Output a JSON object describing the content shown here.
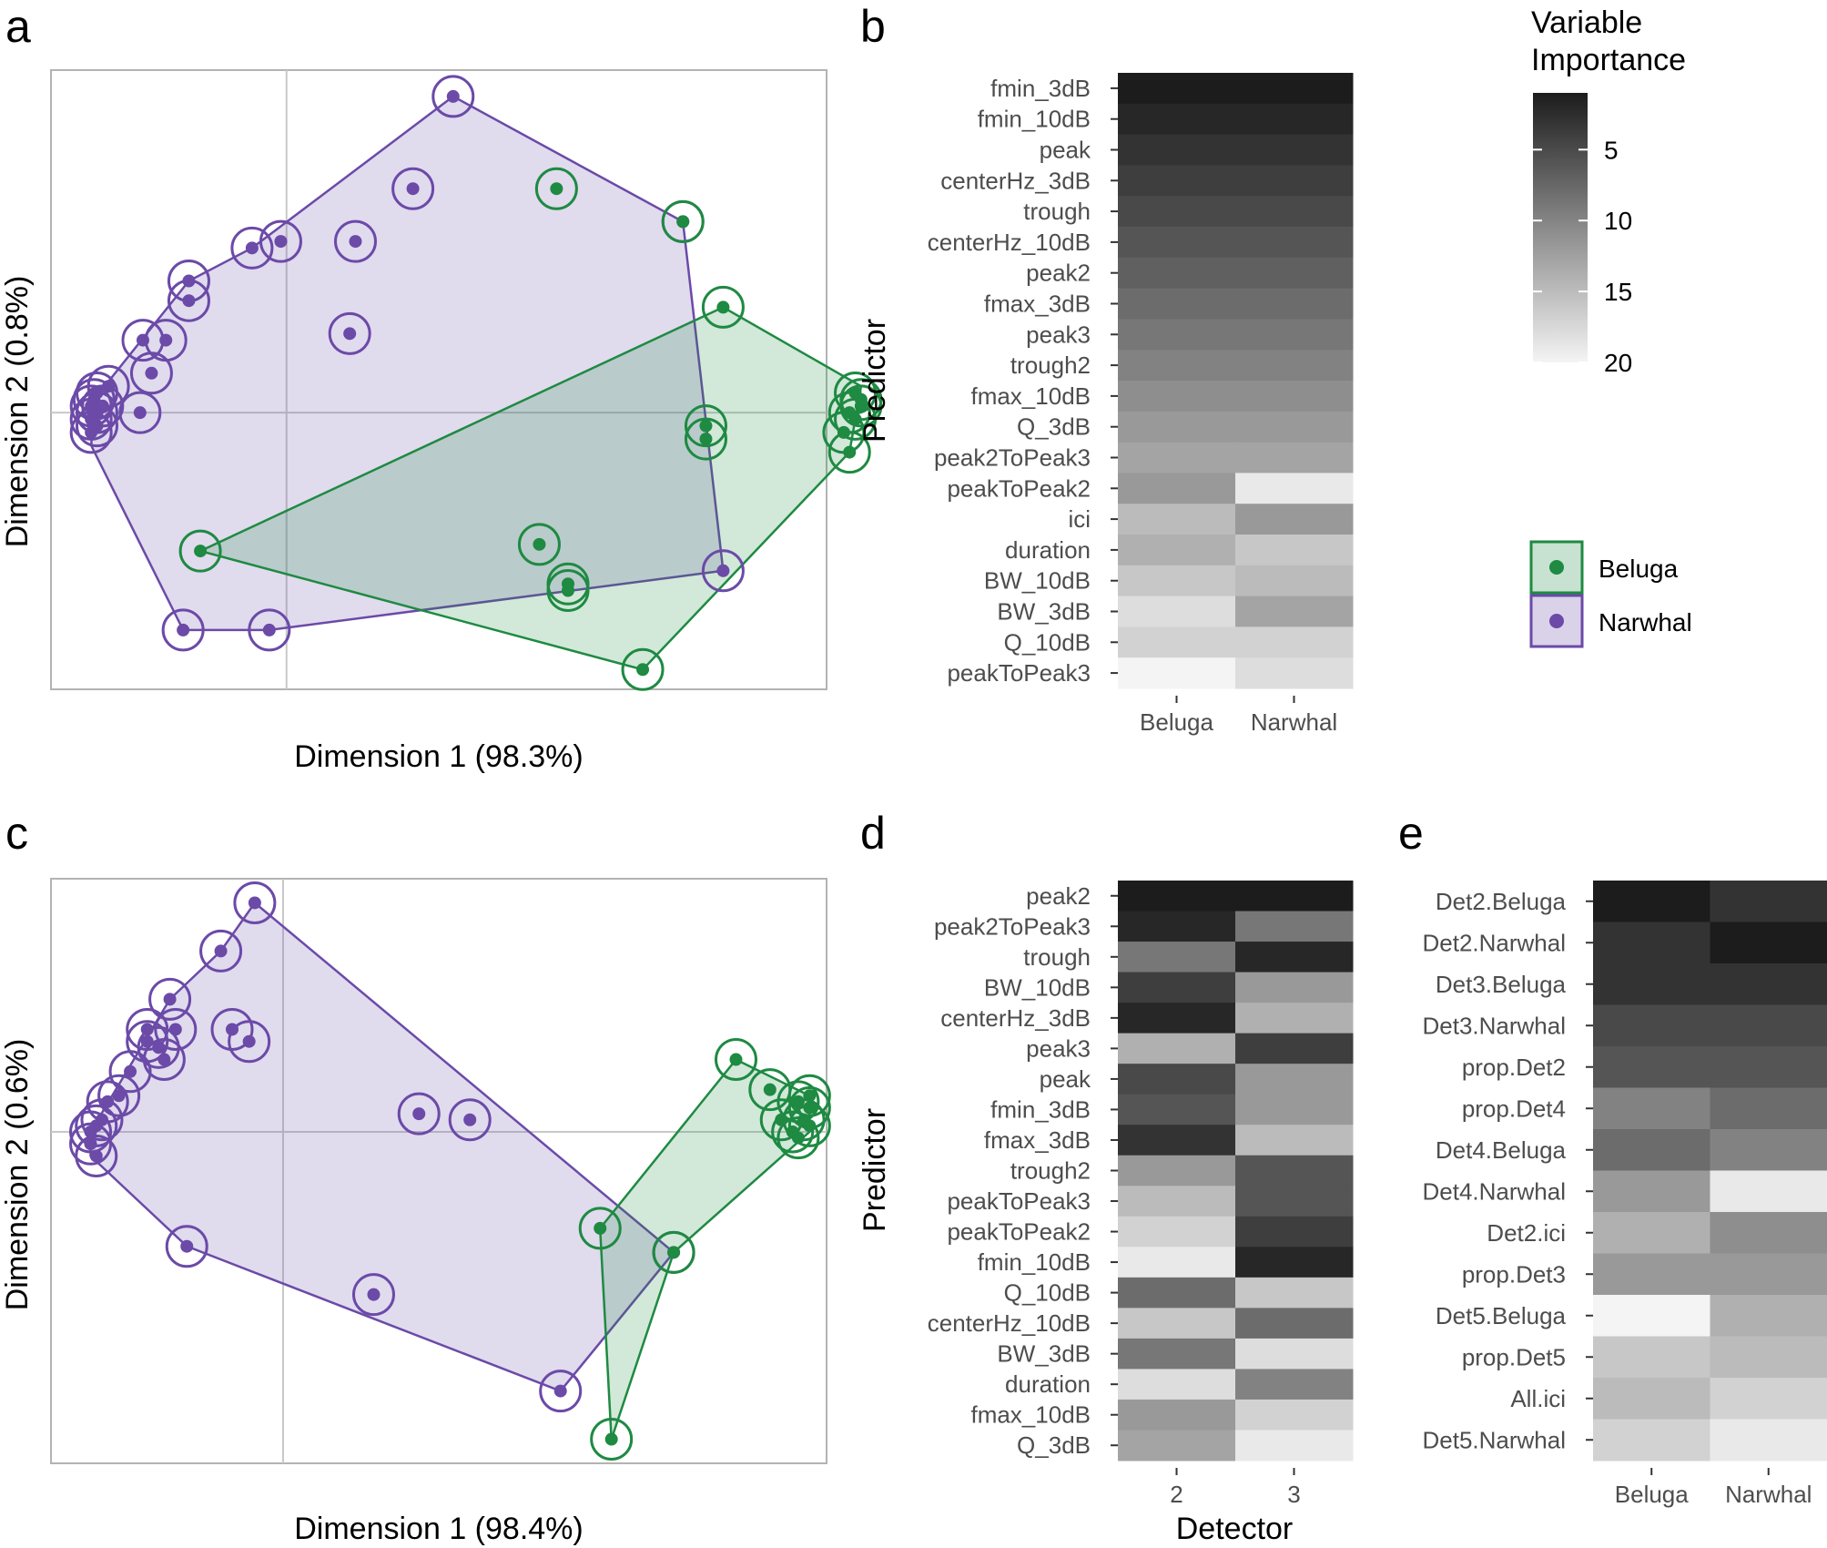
{
  "colors": {
    "beluga": "#1e8a42",
    "beluga_fill": "#1e8a42",
    "narwhal": "#6b4aa8",
    "narwhal_fill": "#6b4aa8",
    "panel_border": "#b3b3b3",
    "grid": "#c8c8c8"
  },
  "legend": {
    "gradient_title_line1": "Variable",
    "gradient_title_line2": "Importance",
    "gradient_ticks": [
      "5",
      "10",
      "15",
      "20"
    ],
    "species": [
      "Beluga",
      "Narwhal"
    ]
  },
  "chart_data": [
    {
      "panel": "a",
      "type": "scatter",
      "xlabel": "Dimension 1 (98.3%)",
      "ylabel": "Dimension 2 (0.8%)",
      "xlim": [
        -0.1,
        1.25
      ],
      "ylim": [
        -0.42,
        0.52
      ],
      "reference_lines": {
        "x": 0.31,
        "y": 0.0
      },
      "series": [
        {
          "name": "Narwhal",
          "points": [
            [
              -0.03,
              -0.01
            ],
            [
              -0.03,
              0.01
            ],
            [
              -0.02,
              0.0
            ],
            [
              -0.02,
              -0.02
            ],
            [
              -0.01,
              0.01
            ],
            [
              -0.025,
              0.02
            ],
            [
              -0.03,
              -0.03
            ],
            [
              -0.02,
              0.03
            ],
            [
              0.0,
              0.04
            ],
            [
              0.055,
              0.0
            ],
            [
              0.075,
              0.06
            ],
            [
              0.06,
              0.11
            ],
            [
              0.1,
              0.11
            ],
            [
              0.14,
              0.17
            ],
            [
              0.14,
              0.2
            ],
            [
              0.25,
              0.25
            ],
            [
              0.3,
              0.26
            ],
            [
              0.43,
              0.26
            ],
            [
              0.53,
              0.34
            ],
            [
              0.42,
              0.12
            ],
            [
              0.6,
              0.48
            ],
            [
              1.0,
              0.29
            ],
            [
              1.07,
              -0.24
            ],
            [
              0.28,
              -0.33
            ],
            [
              0.13,
              -0.33
            ]
          ],
          "hull": [
            [
              0.6,
              0.48
            ],
            [
              1.0,
              0.29
            ],
            [
              1.07,
              -0.24
            ],
            [
              0.28,
              -0.33
            ],
            [
              0.13,
              -0.33
            ],
            [
              -0.03,
              -0.05
            ],
            [
              -0.025,
              0.02
            ],
            [
              0.14,
              0.2
            ],
            [
              0.25,
              0.25
            ]
          ]
        },
        {
          "name": "Beluga",
          "points": [
            [
              0.78,
              0.34
            ],
            [
              1.0,
              0.29
            ],
            [
              1.07,
              0.16
            ],
            [
              1.3,
              0.03
            ],
            [
              1.31,
              0.01
            ],
            [
              1.3,
              -0.01
            ],
            [
              1.29,
              0.0
            ],
            [
              1.31,
              0.02
            ],
            [
              1.28,
              -0.03
            ],
            [
              1.29,
              -0.06
            ],
            [
              1.04,
              -0.02
            ],
            [
              1.04,
              -0.04
            ],
            [
              0.75,
              -0.2
            ],
            [
              0.8,
              -0.26
            ],
            [
              0.8,
              -0.27
            ],
            [
              0.93,
              -0.39
            ],
            [
              0.16,
              -0.21
            ]
          ],
          "hull": [
            [
              1.07,
              0.16
            ],
            [
              1.31,
              0.04
            ],
            [
              1.29,
              -0.06
            ],
            [
              0.93,
              -0.39
            ],
            [
              0.16,
              -0.21
            ]
          ]
        }
      ]
    },
    {
      "panel": "b",
      "type": "heatmap",
      "xlabel": "",
      "ylabel": "Predictor",
      "columns": [
        "Beluga",
        "Narwhal"
      ],
      "rows": [
        "fmin_3dB",
        "fmin_10dB",
        "peak",
        "centerHz_3dB",
        "trough",
        "centerHz_10dB",
        "peak2",
        "fmax_3dB",
        "peak3",
        "trough2",
        "fmax_10dB",
        "Q_3dB",
        "peak2ToPeak3",
        "peakToPeak2",
        "ici",
        "duration",
        "BW_10dB",
        "BW_3dB",
        "Q_10dB",
        "peakToPeak3"
      ],
      "values": [
        [
          1,
          1
        ],
        [
          2,
          2
        ],
        [
          3,
          3
        ],
        [
          4,
          4
        ],
        [
          5,
          5
        ],
        [
          6,
          6
        ],
        [
          7,
          7
        ],
        [
          8,
          8
        ],
        [
          9,
          9
        ],
        [
          10,
          10
        ],
        [
          11,
          11
        ],
        [
          12,
          12
        ],
        [
          13,
          13
        ],
        [
          12,
          19
        ],
        [
          15,
          12
        ],
        [
          14,
          16
        ],
        [
          16,
          15
        ],
        [
          18,
          13
        ],
        [
          17,
          17
        ],
        [
          20,
          18
        ]
      ],
      "scale": {
        "min": 1,
        "max": 20,
        "ticks": [
          5,
          10,
          15,
          20
        ]
      }
    },
    {
      "panel": "c",
      "type": "scatter",
      "xlabel": "Dimension 1 (98.4%)",
      "ylabel": "Dimension 2 (0.6%)",
      "xlim": [
        -0.12,
        1.25
      ],
      "ylim": [
        -0.55,
        0.42
      ],
      "reference_lines": {
        "x": 0.29,
        "y": 0.0
      },
      "series": [
        {
          "name": "Narwhal",
          "points": [
            [
              -0.05,
              0.0
            ],
            [
              -0.05,
              -0.02
            ],
            [
              -0.04,
              -0.04
            ],
            [
              -0.04,
              0.01
            ],
            [
              -0.03,
              0.02
            ],
            [
              -0.02,
              0.05
            ],
            [
              0.0,
              0.06
            ],
            [
              0.02,
              0.1
            ],
            [
              0.05,
              0.15
            ],
            [
              0.07,
              0.14
            ],
            [
              0.08,
              0.12
            ],
            [
              0.05,
              0.17
            ],
            [
              0.1,
              0.17
            ],
            [
              0.09,
              0.22
            ],
            [
              0.2,
              0.17
            ],
            [
              0.23,
              0.15
            ],
            [
              0.18,
              0.3
            ],
            [
              0.24,
              0.38
            ],
            [
              0.53,
              0.03
            ],
            [
              0.62,
              0.02
            ],
            [
              0.12,
              -0.19
            ],
            [
              0.45,
              -0.27
            ],
            [
              0.98,
              -0.2
            ],
            [
              0.78,
              -0.43
            ]
          ],
          "hull": [
            [
              0.24,
              0.38
            ],
            [
              0.98,
              -0.2
            ],
            [
              0.78,
              -0.43
            ],
            [
              0.12,
              -0.19
            ],
            [
              -0.05,
              -0.04
            ],
            [
              -0.05,
              0.0
            ],
            [
              0.09,
              0.22
            ],
            [
              0.18,
              0.3
            ]
          ]
        },
        {
          "name": "Beluga",
          "points": [
            [
              1.09,
              0.12
            ],
            [
              1.15,
              0.07
            ],
            [
              1.2,
              0.05
            ],
            [
              1.22,
              0.06
            ],
            [
              1.22,
              0.04
            ],
            [
              1.21,
              0.02
            ],
            [
              1.22,
              0.01
            ],
            [
              1.2,
              -0.01
            ],
            [
              1.19,
              0.0
            ],
            [
              1.17,
              0.02
            ],
            [
              0.85,
              -0.16
            ],
            [
              0.87,
              -0.51
            ],
            [
              0.98,
              -0.2
            ]
          ],
          "hull": [
            [
              1.09,
              0.12
            ],
            [
              1.22,
              0.06
            ],
            [
              1.22,
              0.0
            ],
            [
              0.98,
              -0.2
            ],
            [
              0.87,
              -0.51
            ],
            [
              0.85,
              -0.16
            ]
          ]
        }
      ]
    },
    {
      "panel": "d",
      "type": "heatmap",
      "xlabel": "Detector",
      "ylabel": "Predictor",
      "columns": [
        "2",
        "3"
      ],
      "rows": [
        "peak2",
        "peak2ToPeak3",
        "trough",
        "BW_10dB",
        "centerHz_3dB",
        "peak3",
        "peak",
        "fmin_3dB",
        "fmax_3dB",
        "trough2",
        "peakToPeak3",
        "peakToPeak2",
        "fmin_10dB",
        "Q_10dB",
        "centerHz_10dB",
        "BW_3dB",
        "duration",
        "fmax_10dB",
        "Q_3dB"
      ],
      "values": [
        [
          1,
          1
        ],
        [
          2,
          9
        ],
        [
          9,
          2
        ],
        [
          4,
          12
        ],
        [
          2,
          14
        ],
        [
          14,
          4
        ],
        [
          5,
          12
        ],
        [
          6,
          12
        ],
        [
          3,
          15
        ],
        [
          12,
          6
        ],
        [
          15,
          6
        ],
        [
          17,
          4
        ],
        [
          19,
          2
        ],
        [
          8,
          16
        ],
        [
          16,
          8
        ],
        [
          9,
          18
        ],
        [
          18,
          10
        ],
        [
          12,
          17
        ],
        [
          13,
          19
        ]
      ],
      "scale": {
        "min": 1,
        "max": 20,
        "ticks": [
          5,
          10,
          15,
          20
        ]
      }
    },
    {
      "panel": "e",
      "type": "heatmap",
      "xlabel": "",
      "ylabel": "",
      "columns": [
        "Beluga",
        "Narwhal"
      ],
      "rows": [
        "Det2.Beluga",
        "Det2.Narwhal",
        "Det3.Beluga",
        "Det3.Narwhal",
        "prop.Det2",
        "prop.Det4",
        "Det4.Beluga",
        "Det4.Narwhal",
        "Det2.ici",
        "prop.Det3",
        "Det5.Beluga",
        "prop.Det5",
        "All.ici",
        "Det5.Narwhal"
      ],
      "values": [
        [
          1,
          3
        ],
        [
          3,
          1
        ],
        [
          3,
          3
        ],
        [
          5,
          5
        ],
        [
          6,
          6
        ],
        [
          10,
          8
        ],
        [
          8,
          10
        ],
        [
          12,
          19
        ],
        [
          14,
          11
        ],
        [
          12,
          12
        ],
        [
          20,
          14
        ],
        [
          16,
          15
        ],
        [
          15,
          17
        ],
        [
          17,
          19
        ]
      ],
      "scale": {
        "min": 1,
        "max": 20,
        "ticks": [
          5,
          10,
          15,
          20
        ]
      }
    }
  ]
}
